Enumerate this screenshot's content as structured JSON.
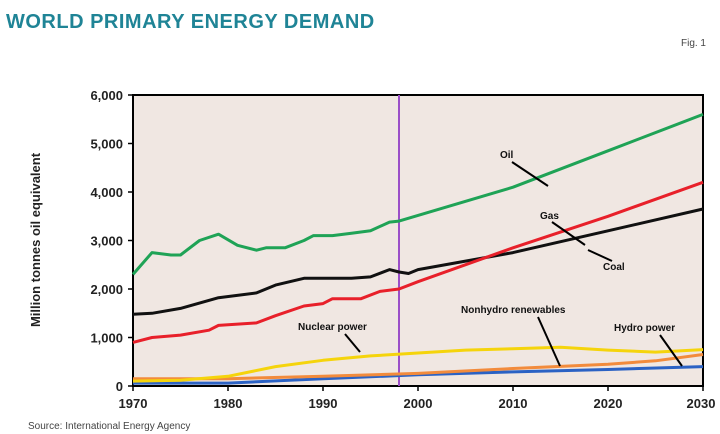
{
  "header": {
    "title": "World primary energy demand",
    "fig": "Fig. 1"
  },
  "source": "Source: International Energy Agency",
  "colors": {
    "background": "#f0e7e2",
    "title": "#1f8496",
    "divider": "#9b4fc8"
  },
  "chart_data": {
    "type": "line",
    "title": "World primary energy demand",
    "xlabel": "",
    "ylabel": "Million tonnes oil equivalent",
    "xlim": [
      1970,
      2030
    ],
    "ylim": [
      0,
      6000
    ],
    "xticks": [
      1970,
      1980,
      1990,
      2000,
      2010,
      2020,
      2030
    ],
    "yticks": [
      0,
      1000,
      2000,
      3000,
      4000,
      5000,
      6000
    ],
    "ytick_labels": [
      "0",
      "1,000",
      "2,000",
      "3,000",
      "4,000",
      "5,000",
      "6,000"
    ],
    "xtick_labels": [
      "1970",
      "1980",
      "1990",
      "2000",
      "2010",
      "2020",
      "2030"
    ],
    "grid": false,
    "vertical_marker": 1998,
    "series": [
      {
        "name": "Oil",
        "color": "#1fa356",
        "x": [
          1970,
          1972,
          1974,
          1975,
          1977,
          1979,
          1981,
          1983,
          1984,
          1986,
          1988,
          1989,
          1991,
          1993,
          1995,
          1997,
          1998,
          2010,
          2020,
          2030
        ],
        "y": [
          2300,
          2750,
          2700,
          2700,
          3000,
          3130,
          2900,
          2800,
          2850,
          2850,
          3000,
          3100,
          3100,
          3150,
          3200,
          3380,
          3400,
          4100,
          4850,
          5600
        ]
      },
      {
        "name": "Gas",
        "color": "#e8202a",
        "x": [
          1970,
          1972,
          1975,
          1978,
          1979,
          1983,
          1985,
          1988,
          1990,
          1991,
          1994,
          1996,
          1998,
          2000,
          2010,
          2020,
          2030
        ],
        "y": [
          900,
          1000,
          1050,
          1150,
          1250,
          1300,
          1450,
          1650,
          1700,
          1800,
          1800,
          1950,
          2000,
          2150,
          2850,
          3500,
          4200
        ]
      },
      {
        "name": "Coal",
        "color": "#111111",
        "x": [
          1970,
          1972,
          1975,
          1979,
          1983,
          1985,
          1988,
          1991,
          1993,
          1995,
          1997,
          1998,
          1999,
          2000,
          2010,
          2020,
          2030
        ],
        "y": [
          1480,
          1500,
          1600,
          1820,
          1920,
          2080,
          2220,
          2220,
          2220,
          2250,
          2400,
          2350,
          2320,
          2400,
          2750,
          3200,
          3650
        ]
      },
      {
        "name": "Nuclear power",
        "color": "#f5d40c",
        "x": [
          1970,
          1975,
          1980,
          1985,
          1990,
          1995,
          2000,
          2005,
          2010,
          2015,
          2020,
          2025,
          2030
        ],
        "y": [
          100,
          120,
          200,
          400,
          530,
          620,
          680,
          740,
          770,
          800,
          740,
          700,
          750
        ]
      },
      {
        "name": "Nonhydro renewables",
        "color": "#f28b3c",
        "x": [
          1970,
          1980,
          1990,
          2000,
          2010,
          2020,
          2025,
          2030
        ],
        "y": [
          150,
          150,
          200,
          260,
          360,
          450,
          520,
          650
        ]
      },
      {
        "name": "Hydro power",
        "color": "#2b62c4",
        "x": [
          1970,
          1980,
          1990,
          2000,
          2010,
          2020,
          2030
        ],
        "y": [
          60,
          60,
          150,
          230,
          290,
          340,
          400
        ]
      }
    ]
  }
}
